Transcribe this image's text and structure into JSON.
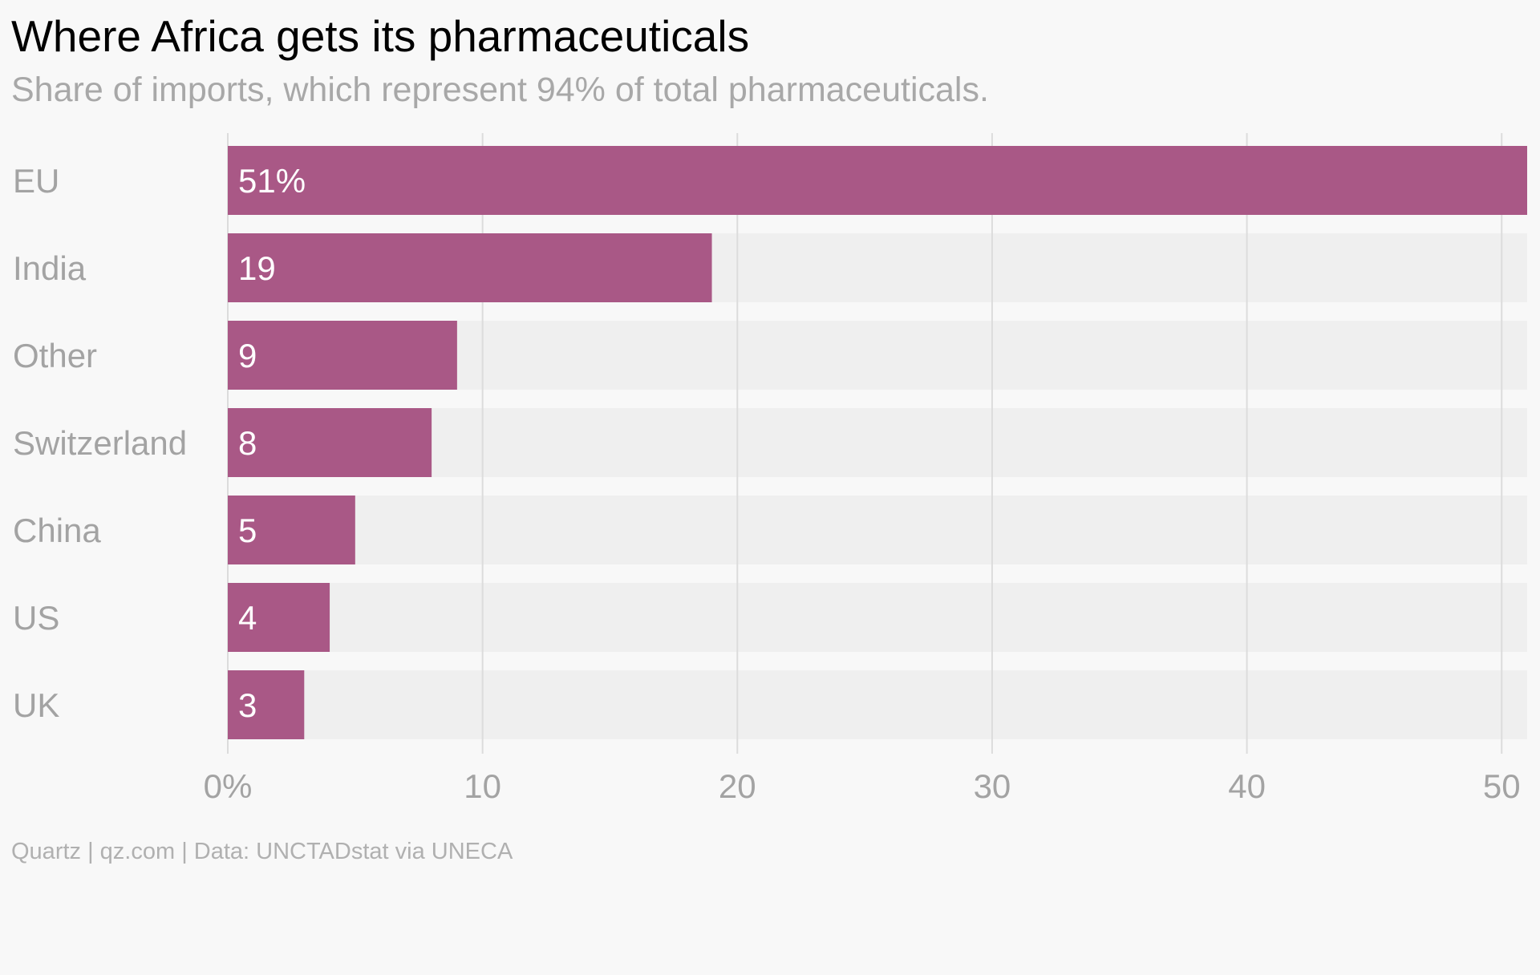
{
  "title": "Where Africa gets its pharmaceuticals",
  "subtitle": "Share of imports, which represent 94% of total pharmaceuticals.",
  "footer": "Quartz | qz.com | Data: UNCTADstat via UNECA",
  "colors": {
    "bar": "#a95886",
    "track": "#efefef",
    "grid": "#dcdcdc",
    "background": "#f8f8f8"
  },
  "chart_data": {
    "type": "bar",
    "orientation": "horizontal",
    "categories": [
      "EU",
      "India",
      "Other",
      "Switzerland",
      "China",
      "US",
      "UK"
    ],
    "values": [
      51,
      19,
      9,
      8,
      5,
      4,
      3
    ],
    "value_labels": [
      "51%",
      "19",
      "9",
      "8",
      "5",
      "4",
      "3"
    ],
    "xlim": [
      0,
      51
    ],
    "xticks": [
      0,
      10,
      20,
      30,
      40,
      50
    ],
    "xtick_labels": [
      "0%",
      "10",
      "20",
      "30",
      "40",
      "50"
    ],
    "grid": true,
    "legend": "none"
  }
}
